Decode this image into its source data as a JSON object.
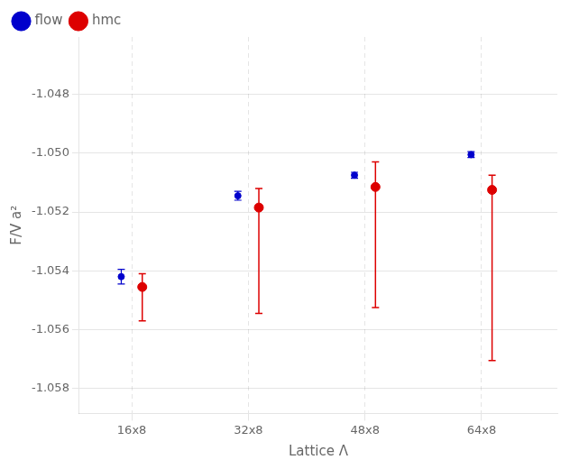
{
  "chart_data": {
    "type": "errorbar",
    "xlabel": "Lattice Λ",
    "ylabel": "F/V a²",
    "categories": [
      "16x8",
      "32x8",
      "48x8",
      "64x8"
    ],
    "series": [
      {
        "name": "flow",
        "color": "#0000cc",
        "marker": "o",
        "values": [
          -1.0542,
          -1.05145,
          -1.05075,
          -1.05005
        ],
        "yerr_lo": [
          0.00025,
          0.00015,
          0.0001,
          0.0001
        ],
        "yerr_hi": [
          0.00025,
          0.00015,
          0.0001,
          0.0001
        ]
      },
      {
        "name": "hmc",
        "color": "#dd0000",
        "marker": "o",
        "values": [
          -1.05455,
          -1.05185,
          -1.05115,
          -1.05125
        ],
        "yerr_lo": [
          0.00115,
          0.0036,
          0.0041,
          0.0058
        ],
        "yerr_hi": [
          0.00045,
          0.00065,
          0.00085,
          0.0005
        ]
      }
    ],
    "ylim": [
      -1.05885,
      -1.04605
    ],
    "yticks": [
      -1.058,
      -1.056,
      -1.054,
      -1.052,
      {
        "value": -1.05,
        "label": "-1.050"
      },
      -1.048
    ],
    "grid": true,
    "legend": "upper left"
  }
}
